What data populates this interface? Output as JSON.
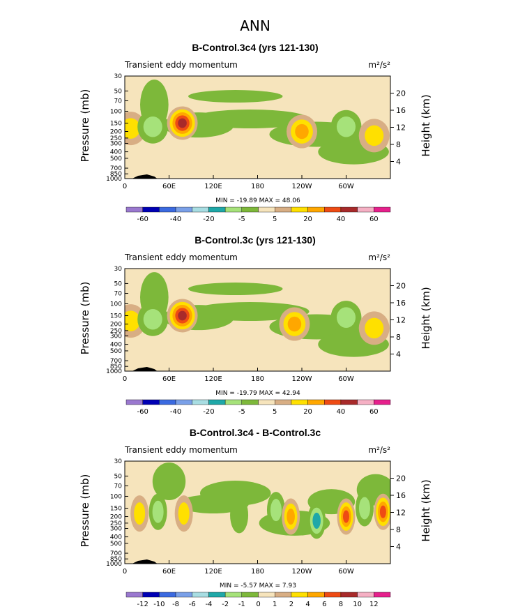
{
  "main_title": "ANN",
  "chart_data": [
    {
      "type": "heatmap",
      "title": "B-Control.3c4 (yrs 121-130)",
      "subtitle": "Transient eddy momentum",
      "units": "m²/s²",
      "ylabel": "Pressure (mb)",
      "ylabel_right": "Height (km)",
      "x_ticks": [
        "0",
        "60E",
        "120E",
        "180",
        "120W",
        "60W"
      ],
      "y_ticks": [
        "30",
        "50",
        "70",
        "100",
        "150",
        "200",
        "250",
        "300",
        "400",
        "500",
        "700",
        "850",
        "1000"
      ],
      "height_ticks": [
        "20",
        "16",
        "12",
        "8",
        "4"
      ],
      "stats": "MIN =  -19.89   MAX =   48.06",
      "colorbar_labels": [
        "-60",
        "-40",
        "-20",
        "-5",
        "5",
        "20",
        "40",
        "60"
      ],
      "features": [
        {
          "lon": 8,
          "p": 180,
          "value": 15
        },
        {
          "lon": 38,
          "p": 170,
          "value": -12
        },
        {
          "lon": 78,
          "p": 150,
          "value": 45
        },
        {
          "lon": 240,
          "p": 200,
          "value": 22
        },
        {
          "lon": 300,
          "p": 170,
          "value": -16
        },
        {
          "lon": 338,
          "p": 230,
          "value": 18
        }
      ]
    },
    {
      "type": "heatmap",
      "title": "B-Control.3c (yrs 121-130)",
      "subtitle": "Transient eddy momentum",
      "units": "m²/s²",
      "ylabel": "Pressure (mb)",
      "ylabel_right": "Height (km)",
      "x_ticks": [
        "0",
        "60E",
        "120E",
        "180",
        "120W",
        "60W"
      ],
      "y_ticks": [
        "30",
        "50",
        "70",
        "100",
        "150",
        "200",
        "250",
        "300",
        "400",
        "500",
        "700",
        "850",
        "1000"
      ],
      "height_ticks": [
        "20",
        "16",
        "12",
        "8",
        "4"
      ],
      "stats": "MIN =  -19.79   MAX =   42.94",
      "colorbar_labels": [
        "-60",
        "-40",
        "-20",
        "-5",
        "5",
        "20",
        "40",
        "60"
      ],
      "features": [
        {
          "lon": 8,
          "p": 180,
          "value": 15
        },
        {
          "lon": 38,
          "p": 170,
          "value": -12
        },
        {
          "lon": 78,
          "p": 150,
          "value": 40
        },
        {
          "lon": 230,
          "p": 200,
          "value": 22
        },
        {
          "lon": 300,
          "p": 160,
          "value": -16
        },
        {
          "lon": 338,
          "p": 230,
          "value": 18
        }
      ]
    },
    {
      "type": "heatmap",
      "title": "B-Control.3c4 - B-Control.3c",
      "subtitle": "Transient eddy momentum",
      "units": "m²/s²",
      "ylabel": "Pressure (mb)",
      "ylabel_right": "Height (km)",
      "x_ticks": [
        "0",
        "60E",
        "120E",
        "180",
        "120W",
        "60W"
      ],
      "y_ticks": [
        "30",
        "50",
        "70",
        "100",
        "150",
        "200",
        "250",
        "300",
        "400",
        "500",
        "700",
        "850",
        "1000"
      ],
      "height_ticks": [
        "20",
        "16",
        "12",
        "8",
        "4"
      ],
      "stats": "MIN =   -5.57   MAX =    7.93",
      "colorbar_labels": [
        "-12",
        "-10",
        "-8",
        "-6",
        "-4",
        "-2",
        "-1",
        "0",
        "1",
        "2",
        "4",
        "6",
        "8",
        "10",
        "12"
      ],
      "features": [
        {
          "lon": 20,
          "p": 180,
          "value": 3
        },
        {
          "lon": 45,
          "p": 170,
          "value": -2
        },
        {
          "lon": 80,
          "p": 180,
          "value": 3
        },
        {
          "lon": 155,
          "p": 190,
          "value": -1.5
        },
        {
          "lon": 205,
          "p": 160,
          "value": -2.5
        },
        {
          "lon": 225,
          "p": 200,
          "value": 5
        },
        {
          "lon": 260,
          "p": 230,
          "value": -4
        },
        {
          "lon": 300,
          "p": 200,
          "value": 7
        },
        {
          "lon": 325,
          "p": 150,
          "value": -3
        },
        {
          "lon": 350,
          "p": 170,
          "value": 6
        }
      ]
    }
  ],
  "colors": {
    "palette": [
      "#9a78cf",
      "#0000b4",
      "#3b6ae0",
      "#7aa0e8",
      "#a8dde2",
      "#1fa8a8",
      "#a6e27a",
      "#7db83a",
      "#f6e4bc",
      "#d8ae84",
      "#ffe000",
      "#ffa700",
      "#ee4b14",
      "#a82a2a",
      "#f5b0c4",
      "#e6208c"
    ]
  }
}
